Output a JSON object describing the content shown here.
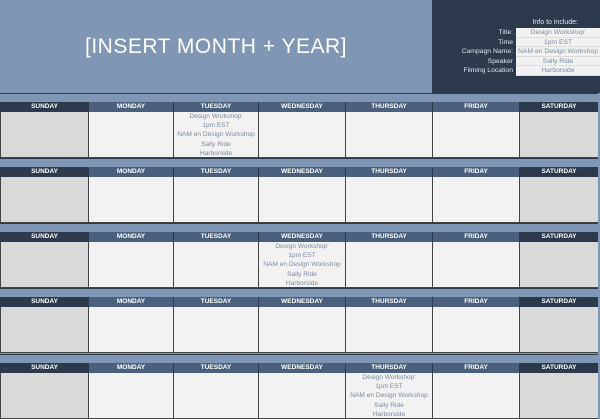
{
  "title": "[INSERT MONTH + YEAR]",
  "info": {
    "header": "Info to include:",
    "rows": [
      {
        "label": "Title:",
        "value": "Design Workshop'"
      },
      {
        "label": "Time",
        "value": "1pm EST"
      },
      {
        "label": "Campagn Name:",
        "value": "NAM en Design Workshop"
      },
      {
        "label": "Speaker",
        "value": "Sally Ride"
      },
      {
        "label": "Filming Location",
        "value": "Harborside"
      }
    ]
  },
  "days": [
    "SUNDAY",
    "MONDAY",
    "TUESDAY",
    "WEDNESDAY",
    "THURSDAY",
    "FRIDAY",
    "SATURDAY"
  ],
  "colors": {
    "banner": "#7f96b4",
    "dark": "#2c3a4c",
    "header": "#4a607d",
    "cell": "#f2f2f2",
    "weekend": "#d9d9d9",
    "event_text": "#7b8aa0"
  },
  "weeks": [
    {
      "events": [
        {
          "day": 2,
          "lines": [
            "Design Workshop'",
            "1pm EST",
            "NAM en Design Workshop",
            "Sally Ride",
            "Harborside"
          ]
        }
      ]
    },
    {
      "events": []
    },
    {
      "events": [
        {
          "day": 3,
          "lines": [
            "Design Workshop'",
            "1pm EST",
            "NAM en Design Workshop",
            "Sally Ride",
            "Harborside"
          ]
        }
      ]
    },
    {
      "events": []
    },
    {
      "events": [
        {
          "day": 4,
          "lines": [
            "Design Workshop'",
            "1pm EST",
            "NAM en Design Workshop",
            "Sally Ride",
            "Harborside"
          ]
        }
      ]
    }
  ]
}
